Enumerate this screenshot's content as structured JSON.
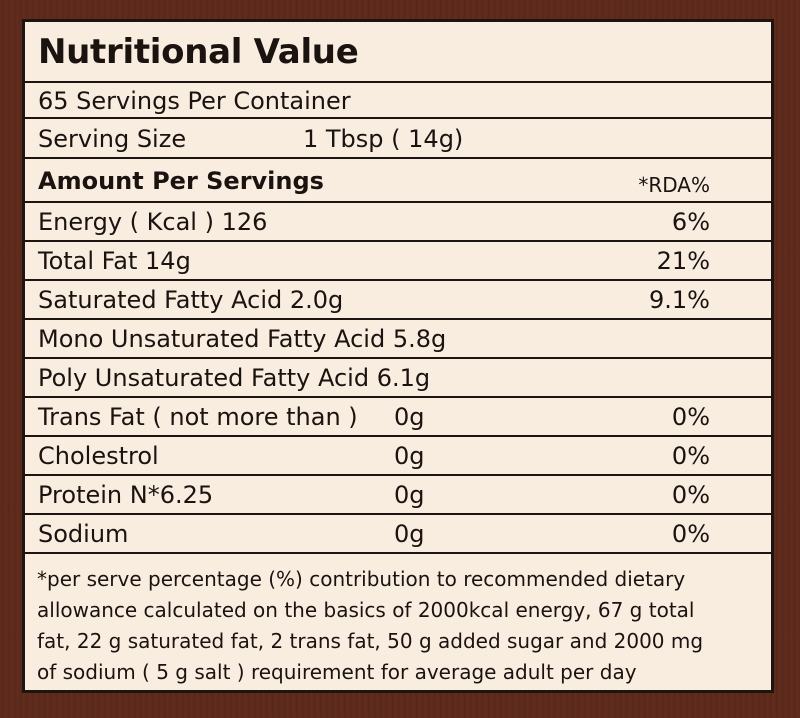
{
  "title": "Nutritional Value",
  "servings_per_container": "65 Servings Per Container",
  "serving_size": {
    "label": "Serving Size",
    "value": "1 Tbsp ( 14g)"
  },
  "amount_header": {
    "label": "Amount Per Servings",
    "rda_label": "*RDA%"
  },
  "rows": [
    {
      "name": "Energy  ( Kcal ) 126",
      "amount": "",
      "rda": "6%"
    },
    {
      "name": "Total Fat 14g",
      "amount": "",
      "rda": "21%"
    },
    {
      "name": "Saturated Fatty Acid 2.0g",
      "amount": "",
      "rda": "9.1%"
    },
    {
      "name": "Mono Unsaturated Fatty Acid 5.8g",
      "amount": "",
      "rda": ""
    },
    {
      "name": "Poly Unsaturated Fatty Acid 6.1g",
      "amount": "",
      "rda": ""
    },
    {
      "name": "Trans Fat ( not more than )",
      "amount": "0g",
      "rda": "0%"
    },
    {
      "name": "Cholestrol",
      "amount": "0g",
      "rda": "0%"
    },
    {
      "name": "Protein N*6.25",
      "amount": "0g",
      "rda": "0%"
    },
    {
      "name": "Sodium",
      "amount": "0g",
      "rda": "0%"
    }
  ],
  "footnote": {
    "lines": [
      "*per serve percentage (%) contribution to recommended dietary",
      "allowance calculated on the basics of 2000kcal energy, 67 g total",
      "fat, 22 g saturated fat, 2 trans fat, 50 g added sugar and 2000 mg",
      "of sodium ( 5 g salt ) requirement for average adult per day"
    ]
  },
  "colors": {
    "background": "#5b2a1c",
    "panel": "#f9ede0",
    "border": "#1c1512"
  }
}
